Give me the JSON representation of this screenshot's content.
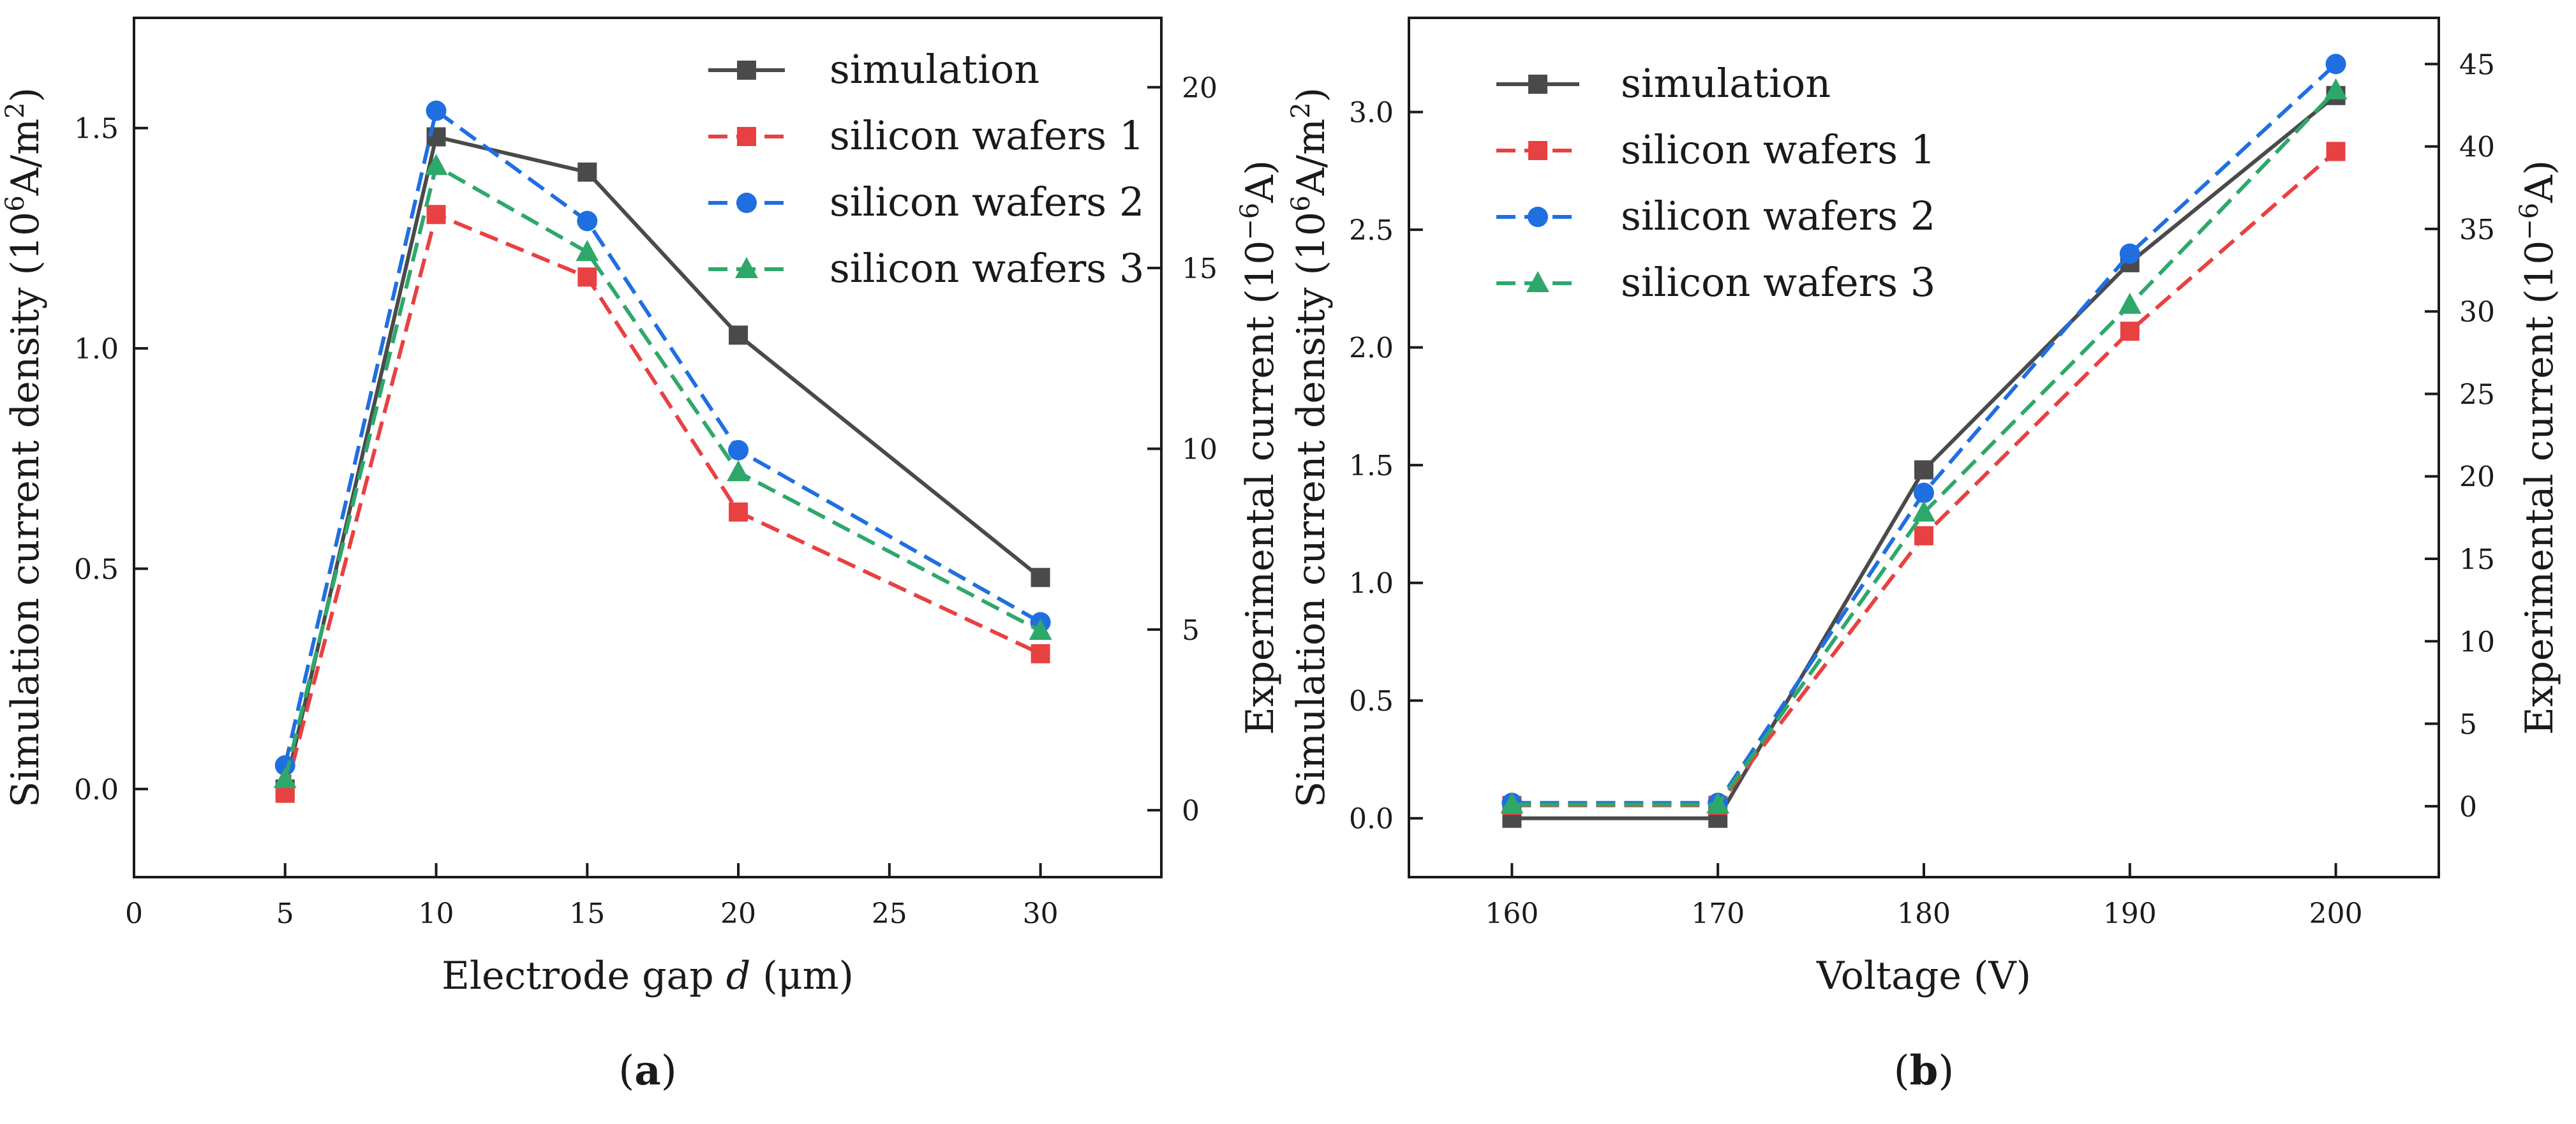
{
  "colors": {
    "simulation": "#4a4a4a",
    "silicon_wafers_1": "#e84141",
    "silicon_wafers_2": "#1f6fe0",
    "silicon_wafers_3": "#2ea86a",
    "axis": "#1a1a1a"
  },
  "chart_data": [
    {
      "type": "line",
      "caption": {
        "open": "(",
        "letter": "a",
        "close": ")"
      },
      "xlabel": {
        "prefix": "Electrode gap ",
        "var": "d",
        "suffix": " (μm)"
      },
      "ylabel_left": {
        "text": "Simulation current density (10",
        "sup": "6",
        "mid": "A/m",
        "sup2": "2",
        "end": ")"
      },
      "ylabel_right": {
        "text": "Experimental current (10",
        "sup": "−6",
        "end": "A)"
      },
      "xlim": [
        0,
        34
      ],
      "ylim_left": [
        -0.2,
        1.75
      ],
      "ylim_right": [
        -1.85,
        21.92
      ],
      "xticks": [
        0,
        5,
        10,
        15,
        20,
        25,
        30
      ],
      "yticks_left": [
        0.0,
        0.5,
        1.0,
        1.5
      ],
      "ytick_labels_left": [
        "0.0",
        "0.5",
        "1.0",
        "1.5"
      ],
      "yticks_right": [
        0,
        5,
        10,
        15,
        20
      ],
      "ytick_labels_right": [
        "0",
        "5",
        "10",
        "15",
        "20"
      ],
      "legend_position": "top-right",
      "series": [
        {
          "key": "simulation",
          "name": "simulation",
          "axis": "left",
          "marker": "square",
          "dash": false,
          "x": [
            5,
            10,
            15,
            20,
            30
          ],
          "values": [
            0.0,
            1.48,
            1.4,
            1.03,
            0.48
          ]
        },
        {
          "key": "silicon_wafers_1",
          "name": "silicon wafers 1",
          "axis": "right",
          "marker": "square",
          "dash": true,
          "x": [
            5,
            10,
            15,
            20,
            30
          ],
          "values": [
            0.47,
            16.48,
            14.75,
            8.25,
            4.33
          ]
        },
        {
          "key": "silicon_wafers_2",
          "name": "silicon wafers 2",
          "axis": "right",
          "marker": "circle",
          "dash": true,
          "x": [
            5,
            10,
            15,
            20,
            30
          ],
          "values": [
            1.24,
            19.35,
            16.3,
            9.96,
            5.2
          ]
        },
        {
          "key": "silicon_wafers_3",
          "name": "silicon wafers 3",
          "axis": "right",
          "marker": "triangle",
          "dash": true,
          "x": [
            5,
            10,
            15,
            20,
            30
          ],
          "values": [
            0.86,
            17.82,
            15.44,
            9.35,
            4.96
          ]
        }
      ]
    },
    {
      "type": "line",
      "caption": {
        "open": "(",
        "letter": "b",
        "close": ")"
      },
      "xlabel": {
        "prefix": "Voltage (V)",
        "var": "",
        "suffix": ""
      },
      "ylabel_left": {
        "text": "Simulation current density (10",
        "sup": "6",
        "mid": "A/m",
        "sup2": "2",
        "end": ")"
      },
      "ylabel_right": {
        "text": "Experimental current (10",
        "sup": "−6",
        "end": "A)"
      },
      "xlim": [
        155,
        205
      ],
      "ylim_left": [
        -0.25,
        3.4
      ],
      "ylim_right": [
        -4.3,
        47.8
      ],
      "xticks": [
        160,
        170,
        180,
        190,
        200
      ],
      "yticks_left": [
        0.0,
        0.5,
        1.0,
        1.5,
        2.0,
        2.5,
        3.0
      ],
      "ytick_labels_left": [
        "0.0",
        "0.5",
        "1.0",
        "1.5",
        "2.0",
        "2.5",
        "3.0"
      ],
      "yticks_right": [
        0,
        5,
        10,
        15,
        20,
        25,
        30,
        35,
        40,
        45
      ],
      "ytick_labels_right": [
        "0",
        "5",
        "10",
        "15",
        "20",
        "25",
        "30",
        "35",
        "40",
        "45"
      ],
      "legend_position": "top-left",
      "series": [
        {
          "key": "simulation",
          "name": "simulation",
          "axis": "left",
          "marker": "square",
          "dash": false,
          "x": [
            160,
            170,
            180,
            190,
            200
          ],
          "values": [
            0.0,
            0.0,
            1.48,
            2.36,
            3.07
          ]
        },
        {
          "key": "silicon_wafers_1",
          "name": "silicon wafers 1",
          "axis": "right",
          "marker": "square",
          "dash": true,
          "x": [
            160,
            170,
            180,
            190,
            200
          ],
          "values": [
            0.05,
            0.05,
            16.4,
            28.8,
            39.7
          ]
        },
        {
          "key": "silicon_wafers_2",
          "name": "silicon wafers 2",
          "axis": "right",
          "marker": "circle",
          "dash": true,
          "x": [
            160,
            170,
            180,
            190,
            200
          ],
          "values": [
            0.2,
            0.2,
            19.0,
            33.5,
            45.0
          ]
        },
        {
          "key": "silicon_wafers_3",
          "name": "silicon wafers 3",
          "axis": "right",
          "marker": "triangle",
          "dash": true,
          "x": [
            160,
            170,
            180,
            190,
            200
          ],
          "values": [
            0.1,
            0.1,
            17.8,
            30.4,
            43.4
          ]
        }
      ]
    }
  ]
}
